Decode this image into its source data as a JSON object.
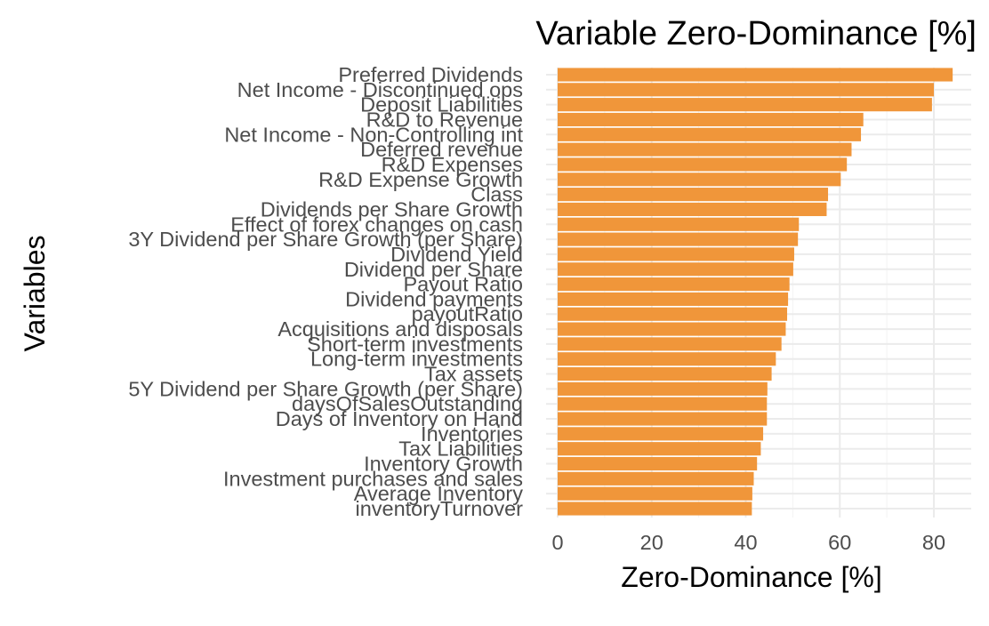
{
  "chart_data": {
    "type": "bar",
    "orientation": "horizontal",
    "title": "Variable Zero-Dominance [%]",
    "xlabel": "Zero-Dominance [%]",
    "ylabel": "Variables",
    "xlim": [
      0,
      87
    ],
    "xticks": [
      0,
      20,
      40,
      60,
      80
    ],
    "grid": true,
    "legend": "none",
    "bar_color": "#F0963A",
    "categories": [
      "Preferred Dividends",
      "Net Income - Discontinued ops",
      "Deposit Liabilities",
      "R&D to Revenue",
      "Net Income - Non-Controlling int",
      "Deferred revenue",
      "R&D Expenses",
      "R&D Expense Growth",
      "Class",
      "Dividends per Share Growth",
      "Effect of forex changes on cash",
      "3Y Dividend per Share Growth (per Share)",
      "Dividend Yield",
      "Dividend per Share",
      "Payout Ratio",
      "Dividend payments",
      "payoutRatio",
      "Acquisitions and disposals",
      "Short-term investments",
      "Long-term investments",
      "Tax assets",
      "5Y Dividend per Share Growth (per Share)",
      "daysOfSalesOutstanding",
      "Days of Inventory on Hand",
      "Inventories",
      "Tax Liabilities",
      "Inventory Growth",
      "Investment purchases and sales",
      "Average Inventory",
      "inventoryTurnover"
    ],
    "values": [
      84.0,
      80.0,
      79.6,
      65.0,
      64.5,
      62.5,
      61.5,
      60.2,
      57.5,
      57.2,
      51.3,
      51.1,
      50.3,
      50.1,
      49.3,
      49.0,
      48.8,
      48.5,
      47.6,
      46.4,
      45.5,
      44.6,
      44.5,
      44.5,
      43.7,
      43.2,
      42.4,
      41.7,
      41.4,
      41.3
    ]
  }
}
